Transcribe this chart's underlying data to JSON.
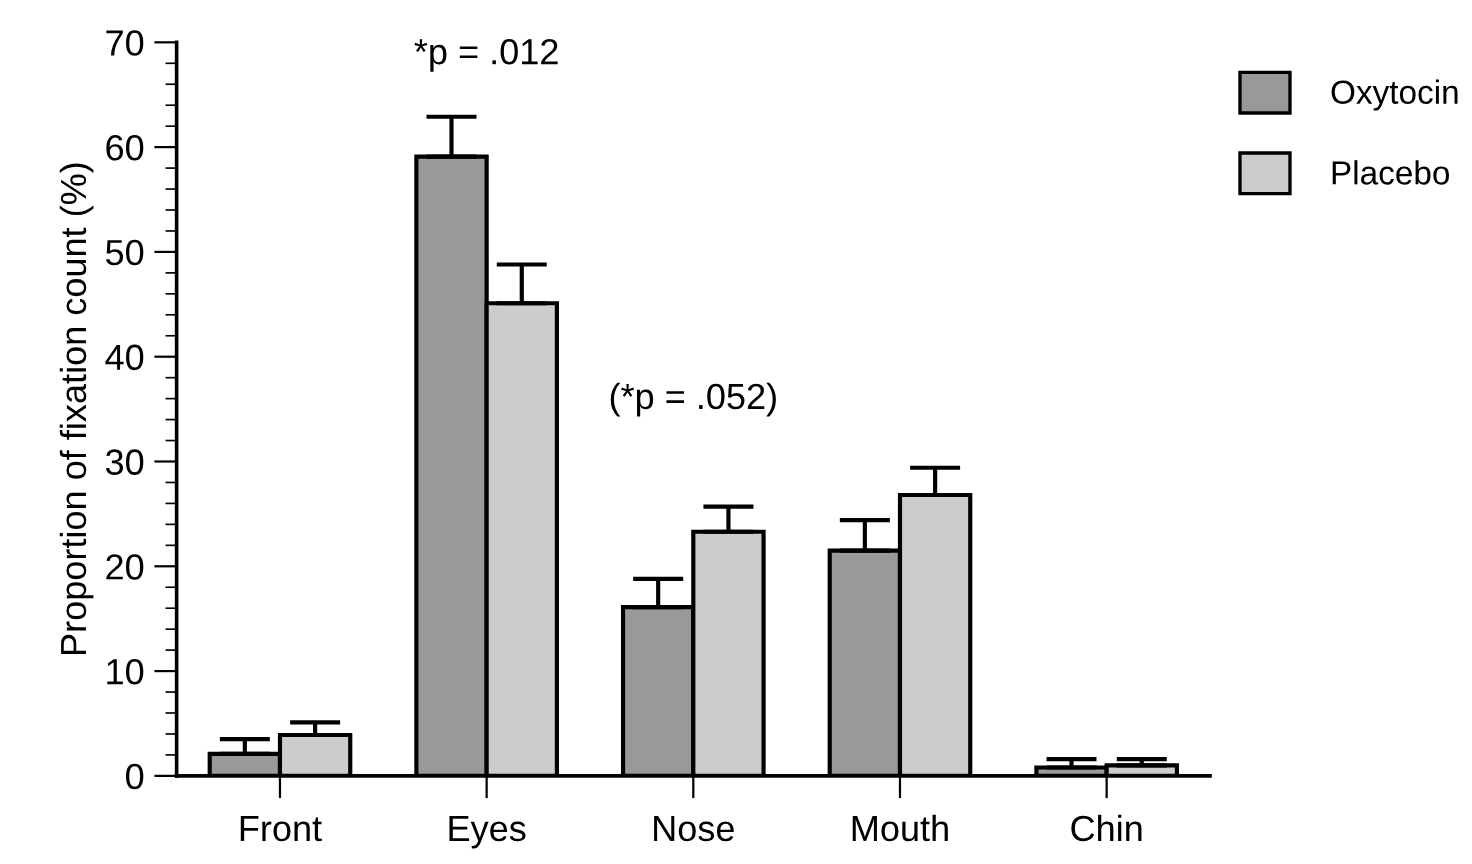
{
  "chart_data": {
    "type": "bar",
    "ylabel": "Proportion of fixation count (%)",
    "categories": [
      "Front",
      "Eyes",
      "Nose",
      "Mouth",
      "Chin"
    ],
    "series": [
      {
        "name": "Oxytocin",
        "color": "#999999",
        "values": [
          2.1,
          59.1,
          16.1,
          21.5,
          0.8
        ],
        "errors": [
          [
            2.1,
            3.5
          ],
          [
            59.1,
            62.9
          ],
          [
            16.1,
            18.8
          ],
          [
            21.5,
            24.4
          ],
          [
            0.8,
            1.6
          ]
        ]
      },
      {
        "name": "Placebo",
        "color": "#cccccc",
        "values": [
          3.9,
          45.1,
          23.3,
          26.8,
          1.0
        ],
        "errors": [
          [
            3.9,
            5.1
          ],
          [
            45.1,
            48.8
          ],
          [
            23.3,
            25.7
          ],
          [
            26.8,
            29.4
          ],
          [
            1.0,
            1.6
          ]
        ]
      }
    ],
    "ylim": [
      0,
      70
    ],
    "yticks": [
      0,
      10,
      20,
      30,
      40,
      50,
      60,
      70
    ],
    "grid": false,
    "legend": "top right",
    "annotations": [
      "*p = .012",
      "(*p = .052)"
    ]
  }
}
